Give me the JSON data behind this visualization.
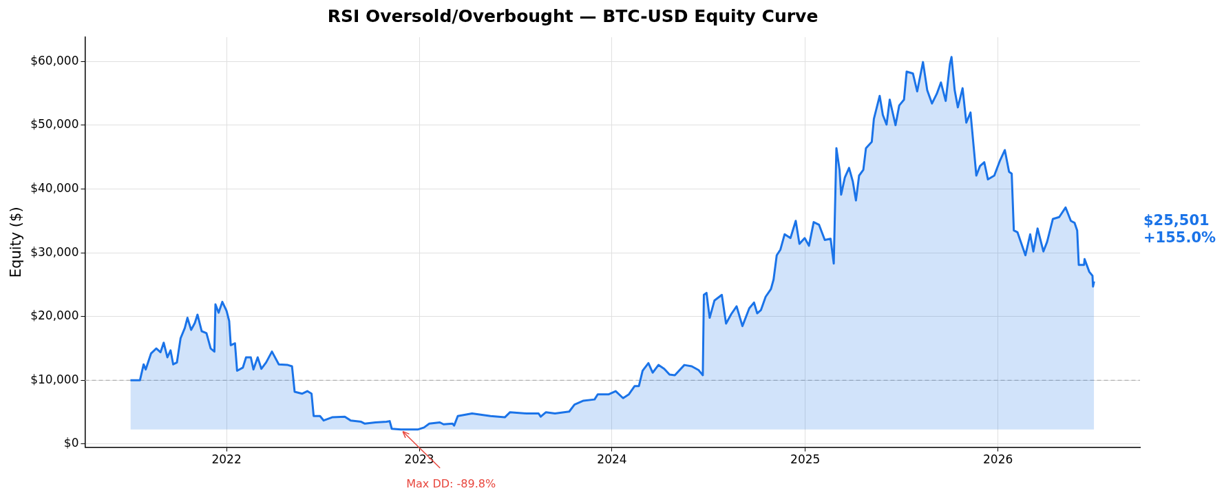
{
  "chart_data": {
    "type": "area",
    "title": "RSI Oversold/Overbought — BTC-USD Equity Curve",
    "ylabel": "Equity ($)",
    "x": [
      "2021-07-03",
      "2021-07-21",
      "2021-07-28",
      "2021-08-01",
      "2021-08-11",
      "2021-08-21",
      "2021-08-29",
      "2021-09-04",
      "2021-09-11",
      "2021-09-17",
      "2021-09-22",
      "2021-09-29",
      "2021-10-06",
      "2021-10-14",
      "2021-10-19",
      "2021-10-26",
      "2021-11-02",
      "2021-11-07",
      "2021-11-15",
      "2021-11-24",
      "2021-12-02",
      "2021-12-09",
      "2021-12-11",
      "2021-12-17",
      "2021-12-24",
      "2022-01-01",
      "2022-01-06",
      "2022-01-09",
      "2022-01-17",
      "2022-01-21",
      "2022-02-01",
      "2022-02-07",
      "2022-02-16",
      "2022-02-21",
      "2022-03-01",
      "2022-03-08",
      "2022-03-17",
      "2022-03-28",
      "2022-04-10",
      "2022-04-27",
      "2022-05-05",
      "2022-05-10",
      "2022-05-24",
      "2022-06-03",
      "2022-06-11",
      "2022-06-15",
      "2022-06-27",
      "2022-07-04",
      "2022-07-20",
      "2022-08-13",
      "2022-08-24",
      "2022-09-13",
      "2022-09-20",
      "2022-10-10",
      "2022-10-31",
      "2022-11-06",
      "2022-11-10",
      "2022-11-27",
      "2022-12-30",
      "2023-01-10",
      "2023-01-20",
      "2023-02-09",
      "2023-02-16",
      "2023-03-05",
      "2023-03-08",
      "2023-03-15",
      "2023-04-11",
      "2023-05-16",
      "2023-06-12",
      "2023-06-22",
      "2023-07-23",
      "2023-08-15",
      "2023-08-19",
      "2023-08-29",
      "2023-09-15",
      "2023-10-12",
      "2023-10-22",
      "2023-11-08",
      "2023-11-29",
      "2023-12-05",
      "2023-12-26",
      "2024-01-08",
      "2024-01-22",
      "2024-02-02",
      "2024-02-13",
      "2024-02-21",
      "2024-02-28",
      "2024-03-10",
      "2024-03-18",
      "2024-03-29",
      "2024-04-09",
      "2024-04-19",
      "2024-04-29",
      "2024-05-17",
      "2024-05-31",
      "2024-06-13",
      "2024-06-21",
      "2024-06-23",
      "2024-06-28",
      "2024-07-04",
      "2024-07-13",
      "2024-07-27",
      "2024-08-04",
      "2024-08-14",
      "2024-08-24",
      "2024-09-04",
      "2024-09-17",
      "2024-09-26",
      "2024-10-02",
      "2024-10-09",
      "2024-10-18",
      "2024-10-28",
      "2024-11-02",
      "2024-11-08",
      "2024-11-15",
      "2024-11-23",
      "2024-12-04",
      "2024-12-14",
      "2024-12-21",
      "2024-12-31",
      "2025-01-08",
      "2025-01-17",
      "2025-01-27",
      "2025-02-07",
      "2025-02-18",
      "2025-02-24",
      "2025-03-01",
      "2025-03-07",
      "2025-03-10",
      "2025-03-17",
      "2025-03-25",
      "2025-04-01",
      "2025-04-07",
      "2025-04-13",
      "2025-04-21",
      "2025-04-26",
      "2025-05-07",
      "2025-05-11",
      "2025-05-22",
      "2025-05-28",
      "2025-06-04",
      "2025-06-10",
      "2025-06-21",
      "2025-06-28",
      "2025-07-07",
      "2025-07-12",
      "2025-07-24",
      "2025-08-01",
      "2025-08-12",
      "2025-08-20",
      "2025-08-29",
      "2025-09-07",
      "2025-09-15",
      "2025-09-24",
      "2025-10-02",
      "2025-10-05",
      "2025-10-11",
      "2025-10-17",
      "2025-10-26",
      "2025-11-02",
      "2025-11-10",
      "2025-11-16",
      "2025-11-21",
      "2025-11-28",
      "2025-12-06",
      "2025-12-13",
      "2025-12-25",
      "2026-01-05",
      "2026-01-14",
      "2026-01-22",
      "2026-01-27",
      "2026-01-31",
      "2026-02-07",
      "2026-02-22",
      "2026-03-03",
      "2026-03-09",
      "2026-03-17",
      "2026-03-28",
      "2026-04-04",
      "2026-04-15",
      "2026-04-27",
      "2026-05-09",
      "2026-05-19",
      "2026-05-26",
      "2026-05-31",
      "2026-06-03",
      "2026-06-13",
      "2026-06-14",
      "2026-06-23",
      "2026-06-29",
      "2026-06-30",
      "2026-07-02"
    ],
    "series": [
      {
        "color": "#1a73e8",
        "values": [
          10000,
          10000,
          12500,
          11700,
          14200,
          15000,
          14400,
          15900,
          13600,
          14700,
          12500,
          12800,
          16600,
          18200,
          19800,
          17900,
          19000,
          20300,
          17700,
          17400,
          15000,
          14500,
          21900,
          20600,
          22300,
          20900,
          19300,
          15500,
          15800,
          11500,
          12000,
          13600,
          13600,
          11700,
          13600,
          11800,
          12800,
          14500,
          12500,
          12400,
          12200,
          8200,
          7900,
          8300,
          7900,
          4400,
          4400,
          3700,
          4200,
          4300,
          3700,
          3500,
          3200,
          3400,
          3500,
          3600,
          2400,
          2300,
          2300,
          2600,
          3200,
          3400,
          3100,
          3200,
          2900,
          4400,
          4800,
          4400,
          4200,
          5000,
          4800,
          4800,
          4300,
          5000,
          4800,
          5100,
          6200,
          6800,
          7000,
          7800,
          7800,
          8300,
          7200,
          7800,
          9100,
          9100,
          11500,
          12700,
          11200,
          12400,
          11800,
          10900,
          10800,
          12400,
          12200,
          11600,
          10800,
          23400,
          23700,
          19800,
          22500,
          23400,
          18900,
          20400,
          21600,
          18500,
          21300,
          22200,
          20500,
          21000,
          23100,
          24300,
          25800,
          29600,
          30500,
          32900,
          32300,
          35000,
          31400,
          32300,
          31100,
          34800,
          34400,
          32000,
          32200,
          28300,
          46400,
          43000,
          39100,
          41800,
          43300,
          41200,
          38200,
          42100,
          43000,
          46400,
          47400,
          51000,
          54600,
          51600,
          50100,
          54000,
          50000,
          53100,
          54000,
          58400,
          58100,
          55300,
          59900,
          55500,
          53400,
          54900,
          56700,
          53800,
          59600,
          60700,
          55500,
          52800,
          55800,
          50400,
          52000,
          46600,
          42100,
          43600,
          44200,
          41500,
          42100,
          44500,
          46100,
          42700,
          42400,
          33500,
          33200,
          29600,
          32900,
          30200,
          33800,
          30200,
          31700,
          35300,
          35600,
          37100,
          35000,
          34700,
          33500,
          28100,
          28100,
          29000,
          27000,
          26400,
          24700,
          25501
        ]
      }
    ],
    "xlim": [
      "2021-04-08",
      "2026-09-27"
    ],
    "xticks": [
      "2022",
      "2023",
      "2024",
      "2025",
      "2026"
    ],
    "ylim": [
      -500,
      63800
    ],
    "yticks": [
      {
        "value": 0,
        "label": "$0"
      },
      {
        "value": 10000,
        "label": "$10,000"
      },
      {
        "value": 20000,
        "label": "$20,000"
      },
      {
        "value": 30000,
        "label": "$30,000"
      },
      {
        "value": 40000,
        "label": "$40,000"
      },
      {
        "value": 50000,
        "label": "$50,000"
      },
      {
        "value": 60000,
        "label": "$60,000"
      }
    ],
    "grid": true,
    "ref_lines": [
      {
        "axis": "y",
        "value": 10000,
        "color": "#b0b0b0",
        "line_style": "dashed"
      }
    ],
    "annotations": [
      {
        "text": "Max DD: -89.8%",
        "x": "2022-11-27",
        "y": 2300
      },
      "$25,501\n+155.0%"
    ]
  }
}
